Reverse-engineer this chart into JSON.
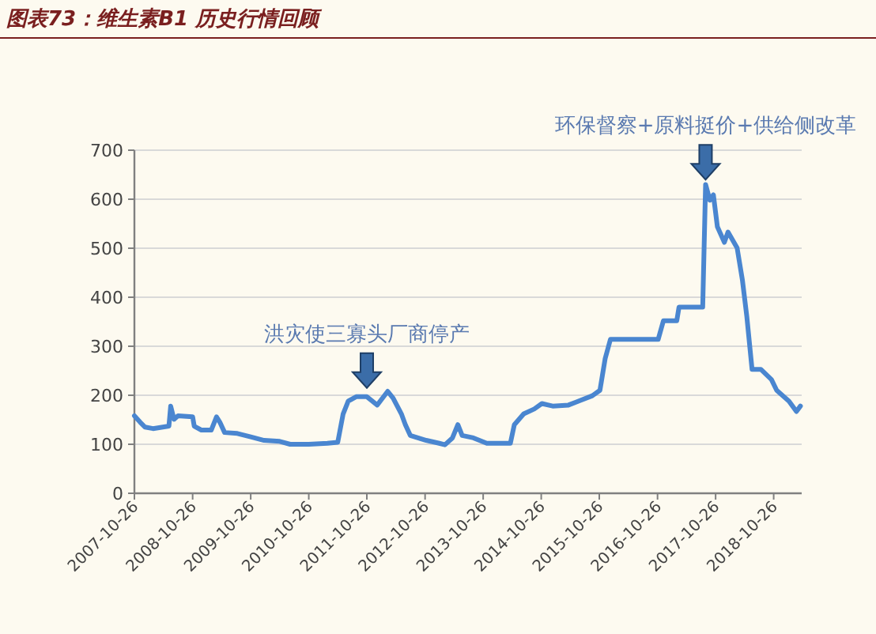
{
  "chart_data": {
    "type": "line",
    "title": "图表73：维生素B1 历史行情回顾",
    "x": [
      "2007-10-26",
      "2007-12-01",
      "2008-01-01",
      "2008-02-20",
      "2008-05-30",
      "2008-06-10",
      "2008-07-01",
      "2008-07-26",
      "2008-10-26",
      "2008-11-05",
      "2008-12-20",
      "2009-02-20",
      "2009-03-25",
      "2009-04-15",
      "2009-05-15",
      "2009-08-03",
      "2009-10-26",
      "2010-01-18",
      "2010-04-26",
      "2010-07-01",
      "2010-10-26",
      "2011-02-20",
      "2011-04-26",
      "2011-05-30",
      "2011-07-01",
      "2011-08-20",
      "2011-10-26",
      "2011-12-30",
      "2012-03-05",
      "2012-04-08",
      "2012-05-30",
      "2012-06-24",
      "2012-07-25",
      "2012-11-02",
      "2013-01-23",
      "2013-02-28",
      "2013-04-16",
      "2013-05-20",
      "2013-06-16",
      "2013-08-26",
      "2013-11-18",
      "2014-04-15",
      "2014-05-10",
      "2014-07-08",
      "2014-09-12",
      "2014-10-30",
      "2015-01-06",
      "2015-04-15",
      "2015-06-01",
      "2015-09-12",
      "2015-10-30",
      "2015-12-02",
      "2016-01-04",
      "2016-10-30",
      "2016-12-02",
      "2017-02-24",
      "2017-03-10",
      "2017-08-06",
      "2017-08-24",
      "2017-09-20",
      "2017-10-12",
      "2017-11-06",
      "2017-12-20",
      "2018-01-12",
      "2018-03-10",
      "2018-04-12",
      "2018-05-10",
      "2018-06-12",
      "2018-08-06",
      "2018-10-12",
      "2018-11-14",
      "2019-01-30",
      "2019-03-18",
      "2019-04-12"
    ],
    "series": [
      {
        "color": "#4a86d0",
        "values": [
          158,
          145,
          135,
          132,
          137,
          178,
          151,
          158,
          156,
          137,
          129,
          129,
          156,
          145,
          124,
          122,
          115,
          108,
          106,
          100,
          100,
          102,
          104,
          162,
          188,
          197,
          197,
          180,
          208,
          194,
          162,
          140,
          118,
          108,
          102,
          99,
          113,
          140,
          118,
          113,
          102,
          102,
          140,
          162,
          172,
          183,
          178,
          180,
          186,
          199,
          210,
          275,
          314,
          314,
          352,
          352,
          380,
          380,
          630,
          598,
          609,
          544,
          512,
          533,
          501,
          436,
          361,
          253,
          253,
          232,
          210,
          188,
          167,
          178
        ]
      }
    ],
    "xlim": [
      "2007-10-26",
      "2019-04-20"
    ],
    "xticks": [
      "2007-10-26",
      "2008-10-26",
      "2009-10-26",
      "2010-10-26",
      "2011-10-26",
      "2012-10-26",
      "2013-10-26",
      "2014-10-26",
      "2015-10-26",
      "2016-10-26",
      "2017-10-26",
      "2018-10-26"
    ],
    "ylim": [
      0,
      700
    ],
    "yticks": [
      0,
      100,
      200,
      300,
      400,
      500,
      600,
      700
    ],
    "grid": "y",
    "annotations": [
      {
        "text": "洪灾使三寡头厂商停产",
        "x": "2011-10-26",
        "y": 215
      },
      {
        "text": "环保督察+原料挺价+供给侧改革",
        "x": "2017-08-24",
        "y": 640
      }
    ]
  }
}
